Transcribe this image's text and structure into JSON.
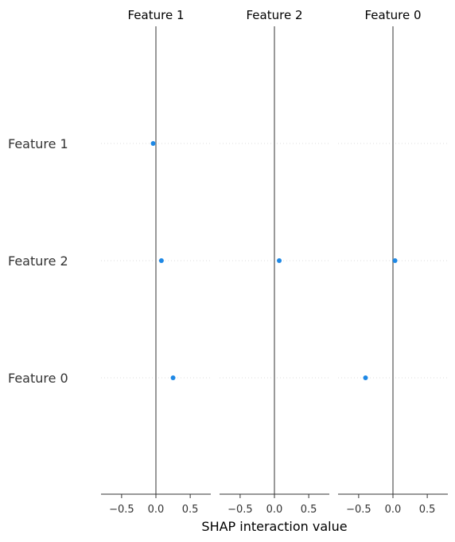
{
  "chart_data": {
    "type": "scatter",
    "xlabel": "SHAP interaction value",
    "row_labels": [
      "Feature 1",
      "Feature 2",
      "Feature 0"
    ],
    "xlim": [
      -0.8,
      0.8
    ],
    "x_ticks": [
      -0.5,
      0.0,
      0.5
    ],
    "x_tick_labels": [
      "−0.5",
      "0.0",
      "0.5"
    ],
    "grid": "dotted horizontal row lines",
    "panels": [
      {
        "title": "Feature 1",
        "points": [
          {
            "feature": "Feature 1",
            "value": -0.04
          },
          {
            "feature": "Feature 2",
            "value": 0.08
          },
          {
            "feature": "Feature 0",
            "value": 0.25
          }
        ]
      },
      {
        "title": "Feature 2",
        "points": [
          {
            "feature": "Feature 2",
            "value": 0.07
          }
        ]
      },
      {
        "title": "Feature 0",
        "points": [
          {
            "feature": "Feature 2",
            "value": 0.03
          },
          {
            "feature": "Feature 0",
            "value": -0.4
          }
        ]
      }
    ]
  },
  "colors": {
    "point": "#1e88e5",
    "zero_line": "#999999",
    "row_grid": "#dddddd",
    "axis": "#333333"
  }
}
